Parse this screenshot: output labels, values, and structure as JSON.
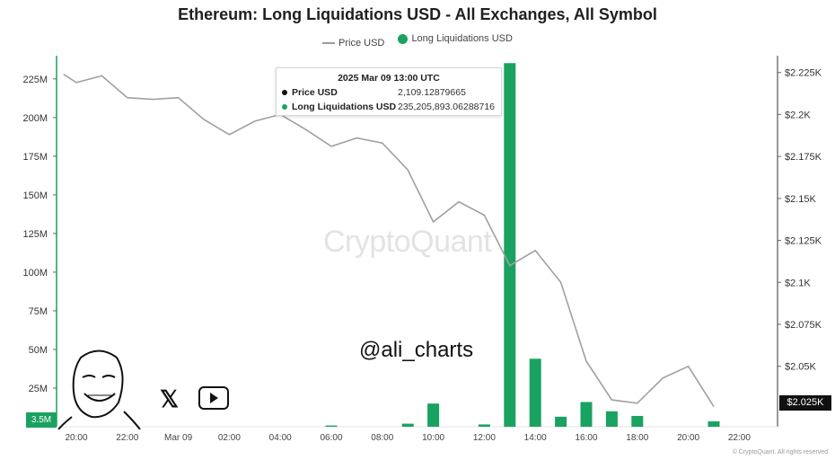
{
  "chart_data": {
    "type": "bar",
    "title": "Ethereum: Long Liquidations USD - All Exchanges, All Symbol",
    "legend": [
      "Price USD",
      "Long Liquidations USD"
    ],
    "colors": {
      "bars": "#1aa260",
      "price_line": "#a0a0a0",
      "price_dot": "#111111"
    },
    "x_ticks": [
      "20:00",
      "22:00",
      "Mar 09",
      "02:00",
      "04:00",
      "06:00",
      "08:00",
      "10:00",
      "12:00",
      "14:00",
      "16:00",
      "18:00",
      "20:00",
      "22:00"
    ],
    "x_tick_hours": [
      0,
      2,
      4,
      6,
      8,
      10,
      12,
      14,
      16,
      18,
      20,
      22,
      24,
      26
    ],
    "left_axis": {
      "ticks": [
        "25M",
        "50M",
        "75M",
        "100M",
        "125M",
        "150M",
        "175M",
        "200M",
        "225M"
      ],
      "tick_values": [
        25,
        50,
        75,
        100,
        125,
        150,
        175,
        200,
        225
      ],
      "ylim": [
        0,
        240
      ],
      "min_label": "3.5M"
    },
    "right_axis": {
      "ticks": [
        "$2.05K",
        "$2.075K",
        "$2.1K",
        "$2.125K",
        "$2.15K",
        "$2.175K",
        "$2.2K",
        "$2.225K"
      ],
      "tick_values": [
        2050,
        2075,
        2100,
        2125,
        2150,
        2175,
        2200,
        2225
      ],
      "ylim": [
        2014,
        2235
      ],
      "last_label": "$2.025K"
    },
    "bars": [
      {
        "hour": 10,
        "value": 0.8
      },
      {
        "hour": 13,
        "value": 2.0
      },
      {
        "hour": 14,
        "value": 15.0
      },
      {
        "hour": 16,
        "value": 1.5
      },
      {
        "hour": 17,
        "value": 235.2
      },
      {
        "hour": 18,
        "value": 44.0
      },
      {
        "hour": 19,
        "value": 6.5
      },
      {
        "hour": 20,
        "value": 16.0
      },
      {
        "hour": 21,
        "value": 10.0
      },
      {
        "hour": 22,
        "value": 7.0
      },
      {
        "hour": 25,
        "value": 3.5
      }
    ],
    "price": [
      {
        "hour": -0.5,
        "value": 2224
      },
      {
        "hour": 0,
        "value": 2219
      },
      {
        "hour": 1,
        "value": 2223
      },
      {
        "hour": 2,
        "value": 2210
      },
      {
        "hour": 3,
        "value": 2209
      },
      {
        "hour": 4,
        "value": 2210
      },
      {
        "hour": 5,
        "value": 2197
      },
      {
        "hour": 6,
        "value": 2188
      },
      {
        "hour": 7,
        "value": 2196
      },
      {
        "hour": 8,
        "value": 2200
      },
      {
        "hour": 9,
        "value": 2191
      },
      {
        "hour": 10,
        "value": 2181
      },
      {
        "hour": 11,
        "value": 2186
      },
      {
        "hour": 12,
        "value": 2183
      },
      {
        "hour": 13,
        "value": 2167
      },
      {
        "hour": 14,
        "value": 2136
      },
      {
        "hour": 15,
        "value": 2148
      },
      {
        "hour": 16,
        "value": 2140
      },
      {
        "hour": 17,
        "value": 2110
      },
      {
        "hour": 18,
        "value": 2119
      },
      {
        "hour": 19,
        "value": 2100
      },
      {
        "hour": 20,
        "value": 2053
      },
      {
        "hour": 21,
        "value": 2030
      },
      {
        "hour": 22,
        "value": 2028
      },
      {
        "hour": 23,
        "value": 2043
      },
      {
        "hour": 24,
        "value": 2050
      },
      {
        "hour": 25,
        "value": 2026
      }
    ]
  },
  "tooltip": {
    "date": "2025 Mar 09 13:00 UTC",
    "price_label": "Price USD",
    "price_value": "2,109.12879665",
    "liq_label": "Long Liquidations USD",
    "liq_value": "235,205,893.06288716"
  },
  "watermark": "CryptoQuant",
  "handle": "@ali_charts",
  "copyright": "© CryptoQuant. All rights reserved"
}
